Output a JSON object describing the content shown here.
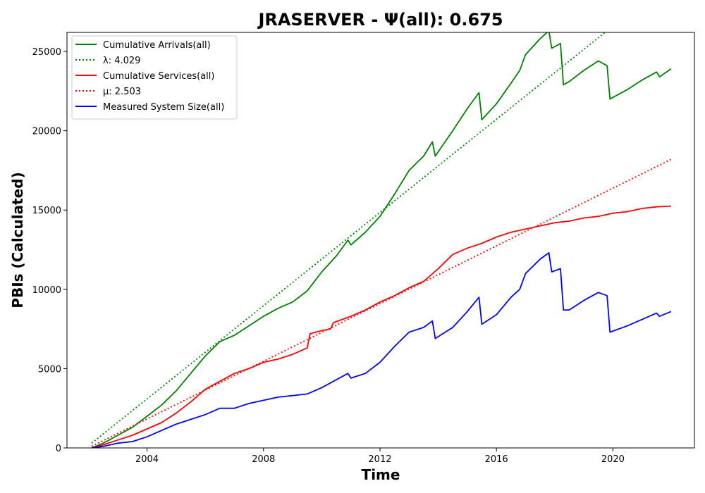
{
  "chart_data": {
    "type": "line",
    "title": "JRASERVER -  Ψ(all): 0.675",
    "xlabel": "Time",
    "ylabel": "PBIs (Calculated)",
    "xlim": [
      2001.25,
      2022.8
    ],
    "ylim": [
      0,
      26200
    ],
    "xticks": [
      2004,
      2008,
      2012,
      2016,
      2020
    ],
    "yticks": [
      0,
      5000,
      10000,
      15000,
      20000,
      25000
    ],
    "grid": false,
    "legend_position": "top-left",
    "series": [
      {
        "name": "Cumulative Arrivals(all)",
        "style": "solid",
        "color": "#008000",
        "points": [
          [
            2002.1,
            0
          ],
          [
            2002.5,
            300
          ],
          [
            2003.0,
            800
          ],
          [
            2003.5,
            1300
          ],
          [
            2004.0,
            2000
          ],
          [
            2004.5,
            2700
          ],
          [
            2005.0,
            3600
          ],
          [
            2005.5,
            4700
          ],
          [
            2006.0,
            5800
          ],
          [
            2006.5,
            6700
          ],
          [
            2007.0,
            7100
          ],
          [
            2007.5,
            7700
          ],
          [
            2008.0,
            8300
          ],
          [
            2008.5,
            8800
          ],
          [
            2009.0,
            9200
          ],
          [
            2009.5,
            9900
          ],
          [
            2010.0,
            11100
          ],
          [
            2010.5,
            12100
          ],
          [
            2010.9,
            13100
          ],
          [
            2011.0,
            12800
          ],
          [
            2011.5,
            13600
          ],
          [
            2012.0,
            14600
          ],
          [
            2012.5,
            16000
          ],
          [
            2013.0,
            17500
          ],
          [
            2013.5,
            18400
          ],
          [
            2013.8,
            19300
          ],
          [
            2013.9,
            18400
          ],
          [
            2014.5,
            20000
          ],
          [
            2015.0,
            21400
          ],
          [
            2015.4,
            22400
          ],
          [
            2015.5,
            20700
          ],
          [
            2016.0,
            21700
          ],
          [
            2016.5,
            23000
          ],
          [
            2016.8,
            23800
          ],
          [
            2017.0,
            24800
          ],
          [
            2017.5,
            25800
          ],
          [
            2017.8,
            26300
          ],
          [
            2017.9,
            25200
          ],
          [
            2018.2,
            25500
          ],
          [
            2018.3,
            22900
          ],
          [
            2018.5,
            23100
          ],
          [
            2019.0,
            23800
          ],
          [
            2019.5,
            24400
          ],
          [
            2019.8,
            24100
          ],
          [
            2019.9,
            22000
          ],
          [
            2020.5,
            22600
          ],
          [
            2021.0,
            23200
          ],
          [
            2021.5,
            23700
          ],
          [
            2021.6,
            23400
          ],
          [
            2022.0,
            23900
          ]
        ]
      },
      {
        "name": "λ: 4.029",
        "style": "dotted",
        "color": "#008000",
        "points": [
          [
            2002.1,
            300
          ],
          [
            2019.8,
            26300
          ]
        ]
      },
      {
        "name": "Cumulative Services(all)",
        "style": "solid",
        "color": "#ff0000",
        "points": [
          [
            2002.1,
            0
          ],
          [
            2002.5,
            200
          ],
          [
            2003.0,
            500
          ],
          [
            2003.5,
            800
          ],
          [
            2004.0,
            1200
          ],
          [
            2004.5,
            1600
          ],
          [
            2005.0,
            2200
          ],
          [
            2005.5,
            2900
          ],
          [
            2006.0,
            3700
          ],
          [
            2006.5,
            4200
          ],
          [
            2007.0,
            4700
          ],
          [
            2007.5,
            5000
          ],
          [
            2008.0,
            5400
          ],
          [
            2008.5,
            5600
          ],
          [
            2009.0,
            5900
          ],
          [
            2009.5,
            6300
          ],
          [
            2009.6,
            7200
          ],
          [
            2010.0,
            7400
          ],
          [
            2010.3,
            7500
          ],
          [
            2010.4,
            7900
          ],
          [
            2011.0,
            8300
          ],
          [
            2011.5,
            8700
          ],
          [
            2012.0,
            9200
          ],
          [
            2012.5,
            9600
          ],
          [
            2013.0,
            10100
          ],
          [
            2013.5,
            10500
          ],
          [
            2014.0,
            11300
          ],
          [
            2014.5,
            12200
          ],
          [
            2015.0,
            12600
          ],
          [
            2015.5,
            12900
          ],
          [
            2016.0,
            13300
          ],
          [
            2016.5,
            13600
          ],
          [
            2017.0,
            13800
          ],
          [
            2017.5,
            14000
          ],
          [
            2018.0,
            14200
          ],
          [
            2018.5,
            14300
          ],
          [
            2019.0,
            14500
          ],
          [
            2019.5,
            14600
          ],
          [
            2020.0,
            14800
          ],
          [
            2020.5,
            14900
          ],
          [
            2021.0,
            15100
          ],
          [
            2021.5,
            15200
          ],
          [
            2022.0,
            15250
          ]
        ]
      },
      {
        "name": "μ: 2.503",
        "style": "dotted",
        "color": "#ff0000",
        "points": [
          [
            2002.1,
            100
          ],
          [
            2022.0,
            18200
          ]
        ]
      },
      {
        "name": "Measured System Size(all)",
        "style": "solid",
        "color": "#0000ff",
        "points": [
          [
            2002.1,
            0
          ],
          [
            2002.5,
            100
          ],
          [
            2003.0,
            300
          ],
          [
            2003.5,
            400
          ],
          [
            2004.0,
            700
          ],
          [
            2004.5,
            1100
          ],
          [
            2005.0,
            1500
          ],
          [
            2005.5,
            1800
          ],
          [
            2006.0,
            2100
          ],
          [
            2006.5,
            2500
          ],
          [
            2007.0,
            2500
          ],
          [
            2007.5,
            2800
          ],
          [
            2008.0,
            3000
          ],
          [
            2008.5,
            3200
          ],
          [
            2009.0,
            3300
          ],
          [
            2009.5,
            3400
          ],
          [
            2010.0,
            3800
          ],
          [
            2010.5,
            4300
          ],
          [
            2010.9,
            4700
          ],
          [
            2011.0,
            4400
          ],
          [
            2011.5,
            4700
          ],
          [
            2012.0,
            5400
          ],
          [
            2012.5,
            6400
          ],
          [
            2013.0,
            7300
          ],
          [
            2013.5,
            7600
          ],
          [
            2013.8,
            8000
          ],
          [
            2013.9,
            6900
          ],
          [
            2014.5,
            7600
          ],
          [
            2015.0,
            8600
          ],
          [
            2015.4,
            9500
          ],
          [
            2015.5,
            7800
          ],
          [
            2016.0,
            8400
          ],
          [
            2016.5,
            9500
          ],
          [
            2016.8,
            10000
          ],
          [
            2017.0,
            11000
          ],
          [
            2017.5,
            11900
          ],
          [
            2017.8,
            12300
          ],
          [
            2017.9,
            11100
          ],
          [
            2018.2,
            11300
          ],
          [
            2018.3,
            8700
          ],
          [
            2018.5,
            8700
          ],
          [
            2019.0,
            9300
          ],
          [
            2019.5,
            9800
          ],
          [
            2019.8,
            9600
          ],
          [
            2019.9,
            7300
          ],
          [
            2020.5,
            7700
          ],
          [
            2021.0,
            8100
          ],
          [
            2021.5,
            8500
          ],
          [
            2021.6,
            8300
          ],
          [
            2022.0,
            8600
          ]
        ]
      }
    ]
  }
}
